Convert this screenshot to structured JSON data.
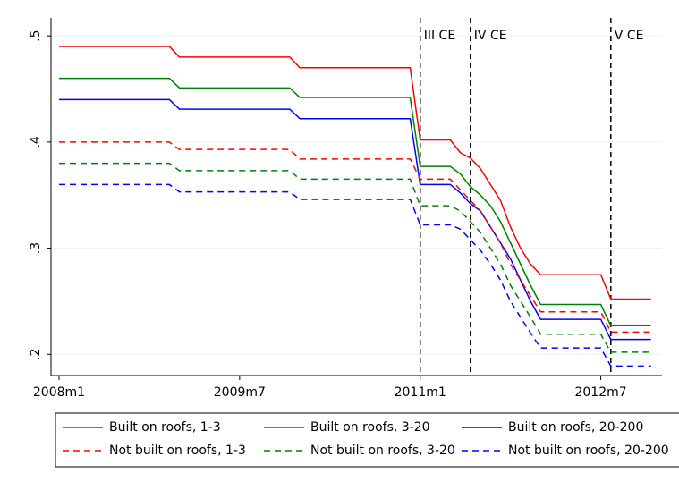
{
  "chart_data": {
    "type": "line",
    "x": [
      0,
      11,
      12,
      23,
      24,
      35,
      36,
      39,
      40,
      41,
      42,
      43,
      44,
      45,
      46,
      47,
      48,
      54,
      55,
      59
    ],
    "xlim": [
      -0.8,
      60.1
    ],
    "xticks": [
      {
        "value": 0,
        "label": "2008m1"
      },
      {
        "value": 18,
        "label": "2009m7"
      },
      {
        "value": 36,
        "label": "2011m1"
      },
      {
        "value": 54,
        "label": "2012m7"
      }
    ],
    "ylim": [
      0.18,
      0.517
    ],
    "yticks": [
      {
        "value": 0.2,
        "label": ".2"
      },
      {
        "value": 0.3,
        "label": ".3"
      },
      {
        "value": 0.4,
        "label": ".4"
      },
      {
        "value": 0.5,
        "label": ".5"
      }
    ],
    "grid": true,
    "vlines": [
      {
        "x": 36,
        "label": "III CE"
      },
      {
        "x": 41,
        "label": "IV CE"
      },
      {
        "x": 55,
        "label": "V CE"
      }
    ],
    "series": [
      {
        "name": "Built on roofs, 1-3",
        "color": "#ff0000",
        "dash": false,
        "values": [
          0.49,
          0.49,
          0.48,
          0.48,
          0.47,
          0.47,
          0.402,
          0.402,
          0.39,
          0.385,
          0.375,
          0.36,
          0.345,
          0.32,
          0.3,
          0.285,
          0.275,
          0.275,
          0.252,
          0.252
        ]
      },
      {
        "name": "Built on roofs, 3-20",
        "color": "#008000",
        "dash": false,
        "values": [
          0.46,
          0.46,
          0.451,
          0.451,
          0.442,
          0.442,
          0.377,
          0.377,
          0.37,
          0.358,
          0.35,
          0.34,
          0.325,
          0.305,
          0.285,
          0.265,
          0.247,
          0.247,
          0.227,
          0.227
        ]
      },
      {
        "name": "Built on roofs, 20-200",
        "color": "#0000ff",
        "dash": false,
        "values": [
          0.44,
          0.44,
          0.431,
          0.431,
          0.422,
          0.422,
          0.36,
          0.36,
          0.352,
          0.342,
          0.335,
          0.32,
          0.305,
          0.29,
          0.27,
          0.25,
          0.233,
          0.233,
          0.214,
          0.214
        ]
      },
      {
        "name": "Not built on roofs, 1-3",
        "color": "#ff0000",
        "dash": true,
        "values": [
          0.4,
          0.4,
          0.393,
          0.393,
          0.384,
          0.384,
          0.365,
          0.365,
          0.355,
          0.345,
          0.335,
          0.32,
          0.305,
          0.285,
          0.27,
          0.255,
          0.24,
          0.24,
          0.221,
          0.221
        ]
      },
      {
        "name": "Not built on roofs, 3-20",
        "color": "#008000",
        "dash": true,
        "values": [
          0.38,
          0.38,
          0.373,
          0.373,
          0.365,
          0.365,
          0.34,
          0.34,
          0.335,
          0.325,
          0.315,
          0.3,
          0.285,
          0.265,
          0.25,
          0.235,
          0.219,
          0.219,
          0.202,
          0.202
        ]
      },
      {
        "name": "Not built on roofs, 20-200",
        "color": "#0000ff",
        "dash": true,
        "values": [
          0.36,
          0.36,
          0.353,
          0.353,
          0.346,
          0.346,
          0.322,
          0.322,
          0.318,
          0.308,
          0.298,
          0.285,
          0.27,
          0.25,
          0.235,
          0.22,
          0.206,
          0.206,
          0.189,
          0.189
        ]
      }
    ]
  }
}
